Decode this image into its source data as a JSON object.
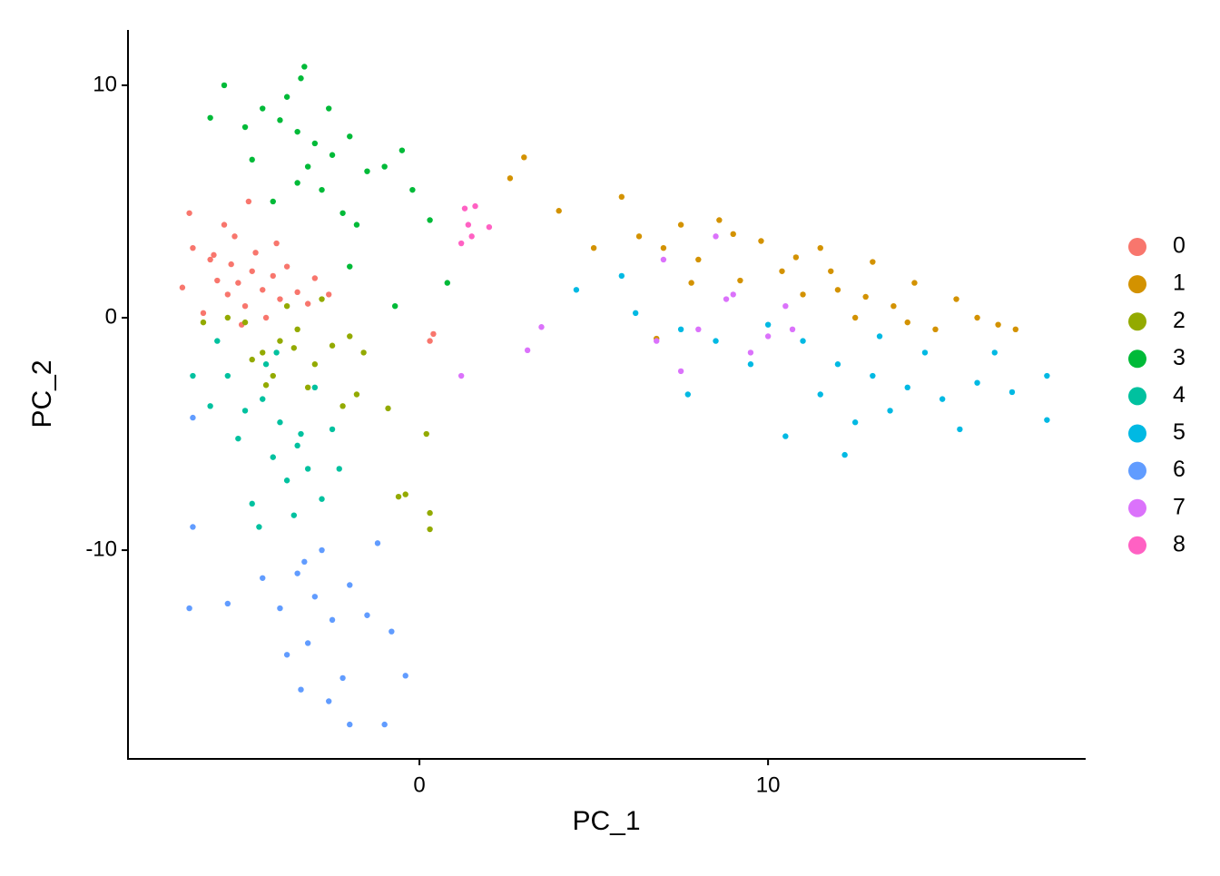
{
  "chart_data": {
    "type": "scatter",
    "x_label": "PC_1",
    "y_label": "PC_2",
    "xlim": [
      -8.36,
      19.11
    ],
    "ylim": [
      -18.98,
      12.38
    ],
    "xticks": [
      0,
      10
    ],
    "yticks": [
      -10,
      0,
      10
    ],
    "grid": false,
    "legend": "right",
    "series": [
      {
        "name": "0",
        "color": "#F8766D",
        "x": [
          -5.2,
          -4.8,
          -5.5,
          -4.5,
          -6.0,
          -5.0,
          -4.2,
          -5.8,
          -6.5,
          -4.0,
          -3.5,
          -5.3,
          -4.7,
          -6.2,
          -5.6,
          -3.8,
          -4.4,
          -6.8,
          -5.1,
          -3.2,
          -4.9,
          -5.9,
          -2.6,
          -6.6,
          -4.1,
          -5.4,
          -3.0,
          0.4,
          0.3
        ],
        "y": [
          1.5,
          2.0,
          1.0,
          1.2,
          2.5,
          0.5,
          1.8,
          1.6,
          3.0,
          0.8,
          1.1,
          3.5,
          2.8,
          0.2,
          4.0,
          2.2,
          0.0,
          1.3,
          -0.3,
          0.6,
          5.0,
          2.7,
          1.0,
          4.5,
          3.2,
          2.3,
          1.7,
          -0.7,
          -1.0
        ]
      },
      {
        "name": "1",
        "color": "#D39200",
        "x": [
          3.0,
          2.6,
          4.0,
          5.0,
          5.8,
          6.3,
          7.0,
          7.5,
          8.0,
          8.6,
          9.2,
          9.8,
          10.4,
          11.0,
          11.5,
          12.0,
          12.5,
          13.0,
          13.6,
          14.2,
          14.8,
          15.4,
          16.0,
          16.6,
          17.1,
          9.0,
          10.8,
          12.8,
          7.8,
          6.8,
          11.8,
          14.0
        ],
        "y": [
          6.9,
          6.0,
          4.6,
          3.0,
          5.2,
          3.5,
          3.0,
          4.0,
          2.5,
          4.2,
          1.6,
          3.3,
          2.0,
          1.0,
          3.0,
          1.2,
          0.0,
          2.4,
          0.5,
          1.5,
          -0.5,
          0.8,
          0.0,
          -0.3,
          -0.5,
          3.6,
          2.6,
          0.9,
          1.5,
          -0.9,
          2.0,
          -0.2
        ]
      },
      {
        "name": "2",
        "color": "#93AA00",
        "x": [
          -4.0,
          -3.5,
          -4.5,
          -3.0,
          -5.0,
          -2.5,
          -3.8,
          -4.2,
          -2.0,
          -5.5,
          -3.2,
          -4.8,
          -1.8,
          -2.8,
          -3.6,
          -6.2,
          -2.2,
          -4.4,
          -1.6,
          0.2,
          0.3,
          0.3,
          -0.6,
          -0.4,
          -0.9
        ],
        "y": [
          -1.0,
          -0.5,
          -1.5,
          -2.0,
          -0.2,
          -1.2,
          0.5,
          -2.5,
          -0.8,
          0.0,
          -3.0,
          -1.8,
          -3.3,
          0.8,
          -1.3,
          -0.2,
          -3.8,
          -2.9,
          -1.5,
          -5.0,
          -8.4,
          -9.1,
          -7.7,
          -7.6,
          -3.9
        ]
      },
      {
        "name": "3",
        "color": "#00BA38",
        "x": [
          -3.5,
          -3.0,
          -4.0,
          -2.5,
          -4.5,
          -3.2,
          -2.0,
          -5.0,
          -3.8,
          -1.5,
          -4.8,
          -2.8,
          -3.3,
          -5.6,
          -1.0,
          -0.5,
          -2.2,
          -3.5,
          -4.2,
          -0.2,
          -2.6,
          -6.0,
          -1.8,
          -2.0,
          0.8,
          -0.7,
          0.3,
          -3.4
        ],
        "y": [
          8.0,
          7.5,
          8.5,
          7.0,
          9.0,
          6.5,
          7.8,
          8.2,
          9.5,
          6.3,
          6.8,
          5.5,
          10.8,
          10.0,
          6.5,
          7.2,
          4.5,
          5.8,
          5.0,
          5.5,
          9.0,
          8.6,
          4.0,
          2.2,
          1.5,
          0.5,
          4.2,
          10.3
        ]
      },
      {
        "name": "4",
        "color": "#00C19F",
        "x": [
          -4.0,
          -4.5,
          -3.5,
          -5.0,
          -3.0,
          -4.2,
          -5.5,
          -3.8,
          -2.5,
          -4.8,
          -6.0,
          -3.2,
          -4.4,
          -2.3,
          -5.2,
          -6.5,
          -3.6,
          -4.6,
          -2.8,
          -5.8,
          -4.1,
          -3.4
        ],
        "y": [
          -4.5,
          -3.5,
          -5.5,
          -4.0,
          -3.0,
          -6.0,
          -2.5,
          -7.0,
          -4.8,
          -8.0,
          -3.8,
          -6.5,
          -2.0,
          -6.5,
          -5.2,
          -2.5,
          -8.5,
          -9.0,
          -7.8,
          -1.0,
          -1.5,
          -5.0
        ]
      },
      {
        "name": "5",
        "color": "#00B9E3",
        "x": [
          12.0,
          13.0,
          14.0,
          15.0,
          16.0,
          12.5,
          13.5,
          14.5,
          11.0,
          10.5,
          17.0,
          18.0,
          18.0,
          9.5,
          8.5,
          7.5,
          6.2,
          5.8,
          4.5,
          11.5,
          13.2,
          15.5,
          16.5,
          10.0,
          12.2,
          7.7
        ],
        "y": [
          -2.0,
          -2.5,
          -3.0,
          -3.5,
          -2.8,
          -4.5,
          -4.0,
          -1.5,
          -1.0,
          -5.1,
          -3.2,
          -2.5,
          -4.4,
          -2.0,
          -1.0,
          -0.5,
          0.2,
          1.8,
          1.2,
          -3.3,
          -0.8,
          -4.8,
          -1.5,
          -0.3,
          -5.9,
          -3.3
        ]
      },
      {
        "name": "6",
        "color": "#619CFF",
        "x": [
          -3.0,
          -3.5,
          -2.5,
          -4.0,
          -2.0,
          -3.2,
          -2.8,
          -3.8,
          -1.5,
          -4.5,
          -2.2,
          -3.4,
          -2.6,
          -1.2,
          -0.8,
          -5.5,
          -6.5,
          -6.5,
          -6.6,
          -0.4,
          -1.0,
          -2.0,
          -3.3
        ],
        "y": [
          -12.0,
          -11.0,
          -13.0,
          -12.5,
          -11.5,
          -14.0,
          -10.0,
          -14.5,
          -12.8,
          -11.2,
          -15.5,
          -16.0,
          -16.5,
          -9.7,
          -13.5,
          -12.3,
          -4.3,
          -9.0,
          -12.5,
          -15.4,
          -17.5,
          -17.5,
          -10.5
        ]
      },
      {
        "name": "7",
        "color": "#DB72FB",
        "x": [
          7.0,
          7.5,
          8.0,
          8.5,
          9.0,
          9.5,
          10.0,
          10.5,
          3.5,
          3.1,
          1.2,
          6.8,
          8.8,
          10.7
        ],
        "y": [
          2.5,
          -2.3,
          -0.5,
          3.5,
          1.0,
          -1.5,
          -0.8,
          0.5,
          -0.4,
          -1.4,
          -2.5,
          -1.0,
          0.8,
          -0.5
        ]
      },
      {
        "name": "8",
        "color": "#FF61C3",
        "x": [
          1.3,
          1.4,
          1.5,
          2.0,
          1.2,
          1.6
        ],
        "y": [
          4.7,
          4.0,
          3.5,
          3.9,
          3.2,
          4.8
        ]
      }
    ]
  }
}
